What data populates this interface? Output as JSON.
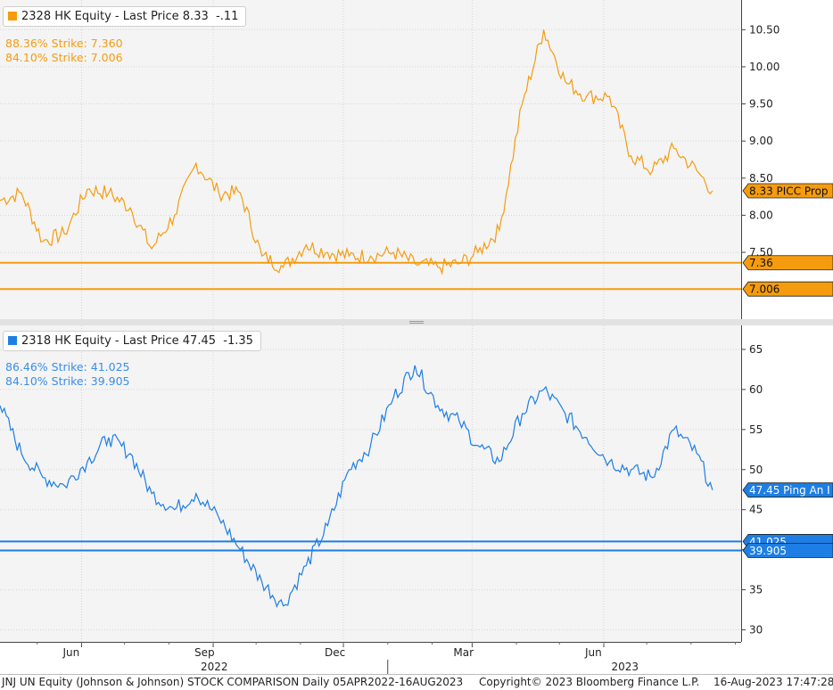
{
  "colors": {
    "top_series": "#f59c0e",
    "bottom_series": "#1e7ee4",
    "grid": "#d5d5d5",
    "panel_bg": "#f4f4f4"
  },
  "top_panel": {
    "legend": {
      "ticker": "2328 HK Equity",
      "text": "Last Price 8.33",
      "change": "-.11"
    },
    "strikes": [
      "88.36% Strike: 7.360",
      "84.10% Strike: 7.006"
    ],
    "tags": [
      "8.33 PICC Prop",
      "7.36",
      "7.006"
    ]
  },
  "bottom_panel": {
    "legend": {
      "ticker": "2318 HK Equity",
      "text": "Last Price 47.45",
      "change": "-1.35"
    },
    "strikes": [
      "86.46% Strike: 41.025",
      "84.10% Strike: 39.905"
    ],
    "tags": [
      "47.45 Ping An I",
      "41.025",
      "39.905"
    ]
  },
  "footer": {
    "left": "JNJ UN Equity (Johnson & Johnson) STOCK COMPARISON  Daily 05APR2022-16AUG2023",
    "center": "Copyright© 2023 Bloomberg Finance L.P.",
    "right": "16-Aug-2023 17:47:28"
  },
  "chart_data": [
    {
      "type": "line",
      "series": [
        {
          "name": "2328 HK Equity",
          "last": 8.33
        }
      ],
      "x": [
        "2022-04-05",
        "2022-04-20",
        "2022-05-05",
        "2022-05-20",
        "2022-06-05",
        "2022-06-20",
        "2022-07-05",
        "2022-07-20",
        "2022-08-05",
        "2022-08-20",
        "2022-09-05",
        "2022-09-20",
        "2022-10-05",
        "2022-10-20",
        "2022-11-05",
        "2022-11-20",
        "2022-12-05",
        "2022-12-20",
        "2023-01-05",
        "2023-01-20",
        "2023-02-05",
        "2023-02-20",
        "2023-03-05",
        "2023-03-20",
        "2023-04-05",
        "2023-04-20",
        "2023-05-05",
        "2023-05-20",
        "2023-06-05",
        "2023-06-20",
        "2023-07-05",
        "2023-07-20",
        "2023-08-05",
        "2023-08-16"
      ],
      "values": [
        8.2,
        8.3,
        7.65,
        7.75,
        8.35,
        8.3,
        8.1,
        7.55,
        8.0,
        8.7,
        8.3,
        8.3,
        7.45,
        7.3,
        7.6,
        7.5,
        7.45,
        7.45,
        7.5,
        7.35,
        7.3,
        7.35,
        7.5,
        7.8,
        9.5,
        10.5,
        9.8,
        9.6,
        9.6,
        8.8,
        8.6,
        8.9,
        8.6,
        8.33
      ],
      "ylim": [
        6.6,
        10.9
      ],
      "yticks": [
        7.5,
        8.0,
        8.5,
        9.0,
        9.5,
        10.0,
        10.5
      ],
      "ytick_labels": [
        "7.50",
        "8.00",
        "8.50",
        "9.00",
        "9.50",
        "10.00",
        "10.50"
      ],
      "hlines": [
        7.36,
        7.006
      ],
      "grid": true
    },
    {
      "type": "line",
      "series": [
        {
          "name": "2318 HK Equity",
          "last": 47.45
        }
      ],
      "x": [
        "2022-04-05",
        "2022-04-20",
        "2022-05-05",
        "2022-05-20",
        "2022-06-05",
        "2022-06-20",
        "2022-07-05",
        "2022-07-20",
        "2022-08-05",
        "2022-08-20",
        "2022-09-05",
        "2022-09-20",
        "2022-10-05",
        "2022-10-20",
        "2022-11-05",
        "2022-11-20",
        "2022-12-05",
        "2022-12-20",
        "2023-01-05",
        "2023-01-20",
        "2023-02-05",
        "2023-02-20",
        "2023-03-05",
        "2023-03-20",
        "2023-04-05",
        "2023-04-20",
        "2023-05-05",
        "2023-05-20",
        "2023-06-05",
        "2023-06-20",
        "2023-07-05",
        "2023-07-20",
        "2023-08-05",
        "2023-08-16"
      ],
      "values": [
        58,
        52,
        49,
        48,
        51,
        54,
        52,
        47,
        45,
        47,
        44,
        40,
        36,
        33,
        38,
        43,
        50,
        53,
        59,
        63,
        58,
        56,
        53,
        51,
        57,
        60,
        57,
        54,
        51,
        50,
        49,
        55,
        52,
        47.45
      ],
      "ylim": [
        28.5,
        68
      ],
      "yticks": [
        30,
        35,
        40,
        45,
        50,
        55,
        60,
        65
      ],
      "ytick_labels": [
        "30",
        "35",
        "40",
        "45",
        "50",
        "55",
        "60",
        "65"
      ],
      "hlines": [
        41.025,
        39.905
      ],
      "grid": true
    },
    {
      "type": "axis",
      "month_labels": [
        {
          "date": "2022-06-01",
          "label": "Jun"
        },
        {
          "date": "2022-09-01",
          "label": "Sep"
        },
        {
          "date": "2022-12-01",
          "label": "Dec"
        },
        {
          "date": "2023-03-01",
          "label": "Mar"
        },
        {
          "date": "2023-06-01",
          "label": "Jun"
        }
      ],
      "year_labels": [
        {
          "date": "2022-09-01",
          "label": "2022"
        },
        {
          "date": "2023-06-15",
          "label": "2023"
        }
      ],
      "start": "2022-04-05",
      "end": "2023-09-05"
    }
  ]
}
